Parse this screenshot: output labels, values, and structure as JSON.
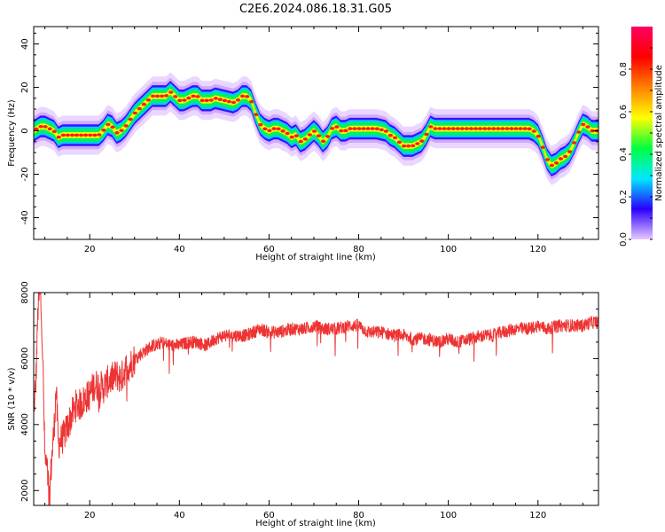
{
  "figure": {
    "title": "C2E6.2024.086.18.31.G05"
  },
  "chart_data": [
    {
      "type": "heatmap",
      "title": "C2E6.2024.086.18.31.G05",
      "xlabel": "Height of straight line (km)",
      "ylabel": "Frequency (Hz)",
      "xlim": [
        7.5,
        133.5
      ],
      "ylim": [
        -50,
        48
      ],
      "xticks": [
        20,
        40,
        60,
        80,
        100,
        120
      ],
      "yticks": [
        -40,
        -20,
        0,
        20,
        40
      ],
      "ridge_frequency": {
        "x": [
          7.5,
          9,
          10,
          12,
          13,
          14,
          16,
          18,
          20,
          22,
          23,
          24,
          25,
          26,
          27,
          28,
          29,
          30,
          31,
          32,
          33,
          34,
          35,
          37,
          38,
          39,
          40,
          41,
          42,
          43,
          44,
          45,
          47,
          48,
          50,
          52,
          53,
          54,
          55,
          56,
          57,
          58,
          59,
          60,
          61,
          62,
          63,
          64,
          65,
          66,
          67,
          68,
          69,
          70,
          71,
          72,
          73,
          74,
          75,
          76,
          77,
          78,
          80,
          84,
          86,
          87,
          88,
          89,
          90,
          91,
          92,
          93,
          94,
          95,
          96,
          97,
          100,
          110,
          118,
          119,
          120,
          121,
          122,
          123,
          124,
          125,
          126,
          127,
          128,
          129,
          130,
          131,
          132,
          133.5
        ],
        "y": [
          0,
          2,
          2,
          0,
          -3,
          -2,
          -2,
          -2,
          -2,
          -2,
          0,
          3,
          2,
          -1,
          0,
          2,
          5,
          8,
          10,
          12,
          14,
          16,
          16,
          16,
          18,
          16,
          14,
          14,
          15,
          16,
          16,
          14,
          14,
          15,
          14,
          13,
          14,
          16,
          16,
          14,
          8,
          3,
          1,
          0,
          1,
          1,
          0,
          -1,
          -3,
          -2,
          -5,
          -4,
          -2,
          0,
          -2,
          -5,
          -3,
          1,
          2,
          0,
          0,
          1,
          1,
          1,
          0,
          -2,
          -3,
          -5,
          -7,
          -7,
          -7,
          -6,
          -5,
          -2,
          2,
          1,
          1,
          1,
          1,
          0,
          -2,
          -7,
          -13,
          -16,
          -15,
          -13,
          -12,
          -10,
          -6,
          -1,
          3,
          2,
          0,
          0
        ]
      },
      "colorbar": {
        "label": "Normalized spectral amplitude",
        "range": [
          0.0,
          1.0
        ],
        "ticks": [
          "0.0",
          "0.2",
          "0.4",
          "0.6",
          "0.8"
        ],
        "colormap": [
          "#e8c8ff",
          "#2a00ff",
          "#00e8ff",
          "#00ff40",
          "#ffff00",
          "#ff8000",
          "#ff0000",
          "#ff0060"
        ]
      }
    },
    {
      "type": "line",
      "xlabel": "Height of straight line (km)",
      "ylabel": "SNR (10 * v/v)",
      "xlim": [
        7.5,
        133.5
      ],
      "ylim": [
        1550,
        8000
      ],
      "xticks": [
        20,
        40,
        60,
        80,
        100,
        120
      ],
      "yticks": [
        2000,
        4000,
        6000,
        8000
      ],
      "color": "#ee3333",
      "series": [
        {
          "x": [
            7.5,
            8,
            8.5,
            9,
            9.5,
            10,
            10.5,
            11,
            11.5,
            12,
            12.5,
            13,
            14,
            15,
            16,
            17,
            18,
            19,
            20,
            21,
            22,
            23,
            24,
            25,
            26,
            27,
            28,
            29,
            30,
            31,
            32,
            33,
            34,
            35,
            36,
            38,
            40,
            42,
            44,
            46,
            48,
            50,
            52,
            55,
            58,
            60,
            62,
            65,
            68,
            70,
            72,
            75,
            78,
            80,
            82,
            85,
            88,
            90,
            92,
            95,
            98,
            100,
            102,
            105,
            108,
            110,
            112,
            115,
            118,
            120,
            122,
            125,
            128,
            130,
            132,
            133.5
          ],
          "y": [
            4400,
            5300,
            7700,
            8000,
            6200,
            3000,
            2600,
            1800,
            2900,
            3800,
            5100,
            3400,
            3600,
            3900,
            4300,
            4600,
            4600,
            4800,
            4900,
            5200,
            5200,
            5100,
            5300,
            5400,
            5500,
            5400,
            5700,
            5800,
            6000,
            6100,
            6200,
            6300,
            6400,
            6400,
            6500,
            6400,
            6400,
            6500,
            6500,
            6400,
            6600,
            6700,
            6700,
            6700,
            6900,
            6800,
            6800,
            6900,
            6900,
            7000,
            6900,
            6900,
            7000,
            7000,
            6800,
            6800,
            6700,
            6700,
            6600,
            6600,
            6500,
            6600,
            6500,
            6600,
            6700,
            6700,
            6800,
            6900,
            6900,
            7000,
            6900,
            7000,
            7000,
            7000,
            7100,
            7100
          ]
        }
      ]
    }
  ]
}
